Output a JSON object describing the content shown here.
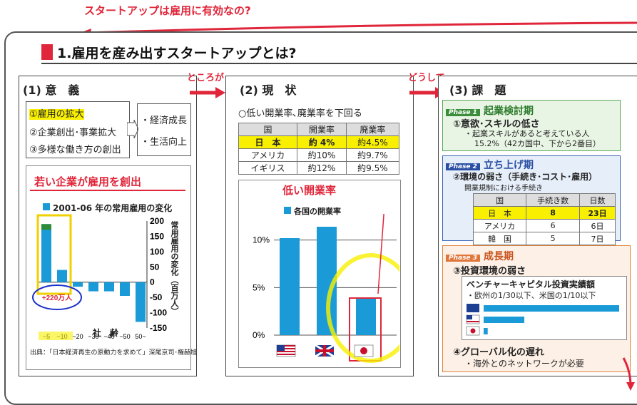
{
  "banner": "スタートアップは雇用に有効なの?",
  "title": "1.雇用を産み出すスタートアップとは?",
  "connectors": {
    "c1": "ところが",
    "c2": "どうして"
  },
  "s1": {
    "heading": "(1) 意　義",
    "items": [
      "①雇用の拡大",
      "②企業創出･事業拡大",
      "③多様な働き方の創出"
    ],
    "effects": [
      "・経済成長",
      "・生活向上"
    ],
    "callout": "若い企業が雇用を創出",
    "legend": "2001-06 年の常用雇用の変化",
    "yticks": [
      "200",
      "150",
      "100",
      "50",
      "0",
      "-50",
      "-100",
      "-150"
    ],
    "ylabel": "常用雇用の変化（百万人）",
    "xlabel": "社　齢",
    "xticks": [
      "~5",
      "~10",
      "~20",
      "~30",
      "~40",
      "~50",
      "50~"
    ],
    "circled": "+220万人",
    "source": "出典：「日本経済再生の原動力を求めて」深尾京司･権赫旭"
  },
  "s2": {
    "heading": "(2) 現　状",
    "lead": "○低い開業率､廃業率を下回る",
    "headers": [
      "国",
      "開業率",
      "廃業率"
    ],
    "rows": [
      [
        "日　本",
        "約 4%",
        "約4.5%"
      ],
      [
        "アメリカ",
        "約10%",
        "約9.7%"
      ],
      [
        "イギリス",
        "約12%",
        "約9.5%"
      ]
    ],
    "callout": "低い開業率",
    "legend": "各国の開業率",
    "yticks": [
      "10%",
      "5%",
      "0%"
    ]
  },
  "s3": {
    "heading": "(3) 課　題",
    "p1": {
      "tag": "Phase 1",
      "title": "起業検討期",
      "sub": "①意欲･スキルの低さ",
      "note": "・起業スキルがあると考えている人",
      "note2": "15.2%（42カ国中、下から2番目）"
    },
    "p2": {
      "tag": "Phase 2",
      "title": "立ち上げ期",
      "sub": "②環境の弱さ（手続き･コスト･雇用）",
      "note": "開業規制における手続き",
      "headers": [
        "国",
        "手続き数",
        "日数"
      ],
      "rows": [
        [
          "日　本",
          "8",
          "23日"
        ],
        [
          "アメリカ",
          "6",
          "6日"
        ],
        [
          "韓　国",
          "5",
          "7日"
        ]
      ]
    },
    "p3": {
      "tag": "Phase 3",
      "title": "成長期",
      "sub": "③投資環境の弱さ",
      "box_title": "ベンチャーキャピタル投資実績額",
      "box_note": "・欧州の1/30以下、米国の1/10以下",
      "sub2": "④グローバル化の遅れ",
      "note2": "・海外とのネットワークが必要"
    }
  },
  "chart_data": [
    {
      "type": "bar",
      "title": "",
      "series": [
        {
          "name": "2001-06 年の常用雇用の変化",
          "values": [
            190,
            40,
            -15,
            -30,
            -30,
            -45,
            -130
          ]
        }
      ],
      "categories": [
        "~5",
        "~10",
        "~20",
        "~30",
        "~40",
        "~50",
        "50~"
      ],
      "ylabel": "常用雇用の変化（百万人）",
      "xlabel": "社　齢",
      "ylim": [
        -150,
        200
      ],
      "colors": {
        "bar": "#1a9bd7"
      }
    },
    {
      "type": "bar",
      "series": [
        {
          "name": "各国の開業率",
          "values": [
            10.2,
            11.4,
            3.9
          ]
        }
      ],
      "categories": [
        "アメリカ",
        "イギリス",
        "日本"
      ],
      "ylim": [
        0,
        12
      ],
      "colors": {
        "bar": "#1a9bd7"
      }
    },
    {
      "type": "bar",
      "title": "",
      "series": [
        {
          "name": "ベンチャーキャピタル投資実績額",
          "values": [
            1,
            0.3,
            0.03
          ]
        }
      ],
      "categories": [
        "欧州",
        "アメリカ",
        "日本"
      ]
    }
  ],
  "colors": {
    "accent": "#e0263a",
    "bar": "#1a9bd7",
    "highlight": "#f8f000"
  }
}
